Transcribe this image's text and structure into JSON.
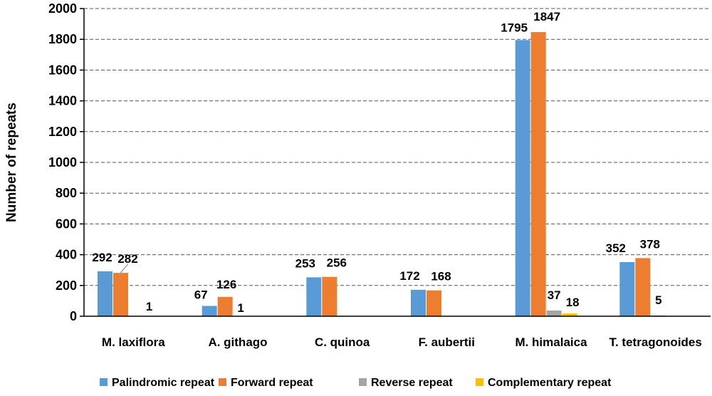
{
  "chart_data": {
    "type": "bar",
    "title": "",
    "xlabel": "",
    "ylabel": "Number of repeats",
    "ylim": [
      0,
      2000
    ],
    "yticks": [
      0,
      200,
      400,
      600,
      800,
      1000,
      1200,
      1400,
      1600,
      1800,
      2000
    ],
    "grid": "horizontal-dashed",
    "legend_position": "bottom",
    "categories": [
      "M. laxiflora",
      "A. githago",
      "C. quinoa",
      "F. aubertii",
      "M. himalaica",
      "T. tetragonoides"
    ],
    "series": [
      {
        "name": "Palindromic repeat",
        "color": "#5B9BD5",
        "values": [
          292,
          67,
          253,
          172,
          1795,
          352
        ],
        "labels": [
          "292",
          "67",
          "253",
          "172",
          "1795",
          "352"
        ]
      },
      {
        "name": "Forward repeat",
        "color": "#ED7D31",
        "values": [
          282,
          126,
          256,
          168,
          1847,
          378
        ],
        "labels": [
          "282",
          "126",
          "256",
          "168",
          "1847",
          "378"
        ]
      },
      {
        "name": "Reverse repeat",
        "color": "#A5A5A5",
        "values": [
          0,
          0,
          0,
          0,
          37,
          5
        ],
        "labels": [
          "",
          "",
          "",
          "",
          "37",
          "5"
        ]
      },
      {
        "name": "Complementary repeat",
        "color": "#FFC000",
        "values": [
          1,
          1,
          0,
          0,
          18,
          0
        ],
        "labels": [
          "1",
          "1",
          "",
          "",
          "18",
          ""
        ]
      }
    ]
  }
}
